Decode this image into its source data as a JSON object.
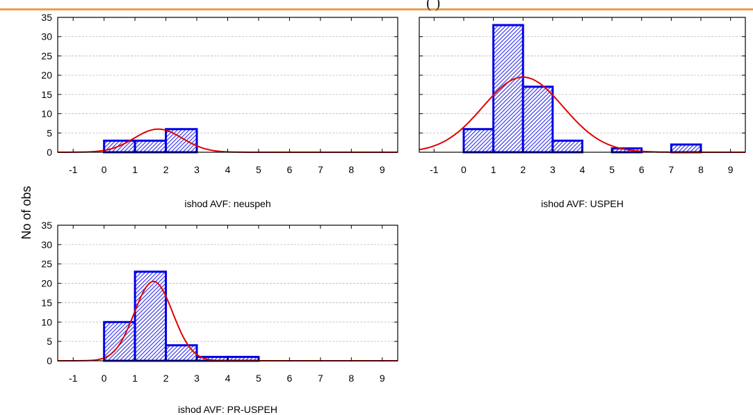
{
  "header": {
    "title_fragment": "(     )"
  },
  "ylabel": "No of obs",
  "chart_data": [
    {
      "type": "bar",
      "subtype": "histogram",
      "title": "ishod AVF: neuspeh",
      "bin_edges": [
        0,
        1,
        2,
        3
      ],
      "values": [
        3,
        3,
        6
      ],
      "curve": {
        "type": "normal",
        "peak_x": 1.75,
        "peak_y": 6,
        "sigma": 0.78
      },
      "xlim": [
        -1.5,
        9.5
      ],
      "ylim": [
        0,
        35
      ],
      "xticks": [
        "-1",
        "0",
        "1",
        "2",
        "3",
        "4",
        "5",
        "6",
        "7",
        "8",
        "9"
      ],
      "yticks": [
        "0",
        "5",
        "10",
        "15",
        "20",
        "25",
        "30",
        "35"
      ],
      "grid": true
    },
    {
      "type": "bar",
      "subtype": "histogram",
      "title": "ishod AVF: USPEH",
      "bin_edges": [
        0,
        1,
        2,
        3,
        4,
        5,
        6,
        7,
        8
      ],
      "values": [
        6,
        33,
        17,
        3,
        0,
        1,
        0,
        2
      ],
      "curve": {
        "type": "normal",
        "peak_x": 2.0,
        "peak_y": 19.5,
        "sigma": 1.35
      },
      "xlim": [
        -1.5,
        9.5
      ],
      "ylim": [
        0,
        35
      ],
      "xticks": [
        "-1",
        "0",
        "1",
        "2",
        "3",
        "4",
        "5",
        "6",
        "7",
        "8",
        "9"
      ],
      "yticks": [],
      "grid": true
    },
    {
      "type": "bar",
      "subtype": "histogram",
      "title": "ishod AVF: PR-USPEH",
      "bin_edges": [
        0,
        1,
        2,
        3,
        4,
        5
      ],
      "values": [
        10,
        23,
        4,
        1,
        1
      ],
      "curve": {
        "type": "normal",
        "peak_x": 1.6,
        "peak_y": 20.5,
        "sigma": 0.62
      },
      "xlim": [
        -1.5,
        9.5
      ],
      "ylim": [
        0,
        35
      ],
      "xticks": [
        "-1",
        "0",
        "1",
        "2",
        "3",
        "4",
        "5",
        "6",
        "7",
        "8",
        "9"
      ],
      "yticks": [
        "0",
        "5",
        "10",
        "15",
        "20",
        "25",
        "30",
        "35"
      ],
      "grid": true
    }
  ],
  "colors": {
    "bar_stroke": "#0000e6",
    "bar_hatch": "#3b3bea",
    "curve": "#e00000",
    "grid": "#b8b8b8",
    "rule": "#e8a04c"
  }
}
